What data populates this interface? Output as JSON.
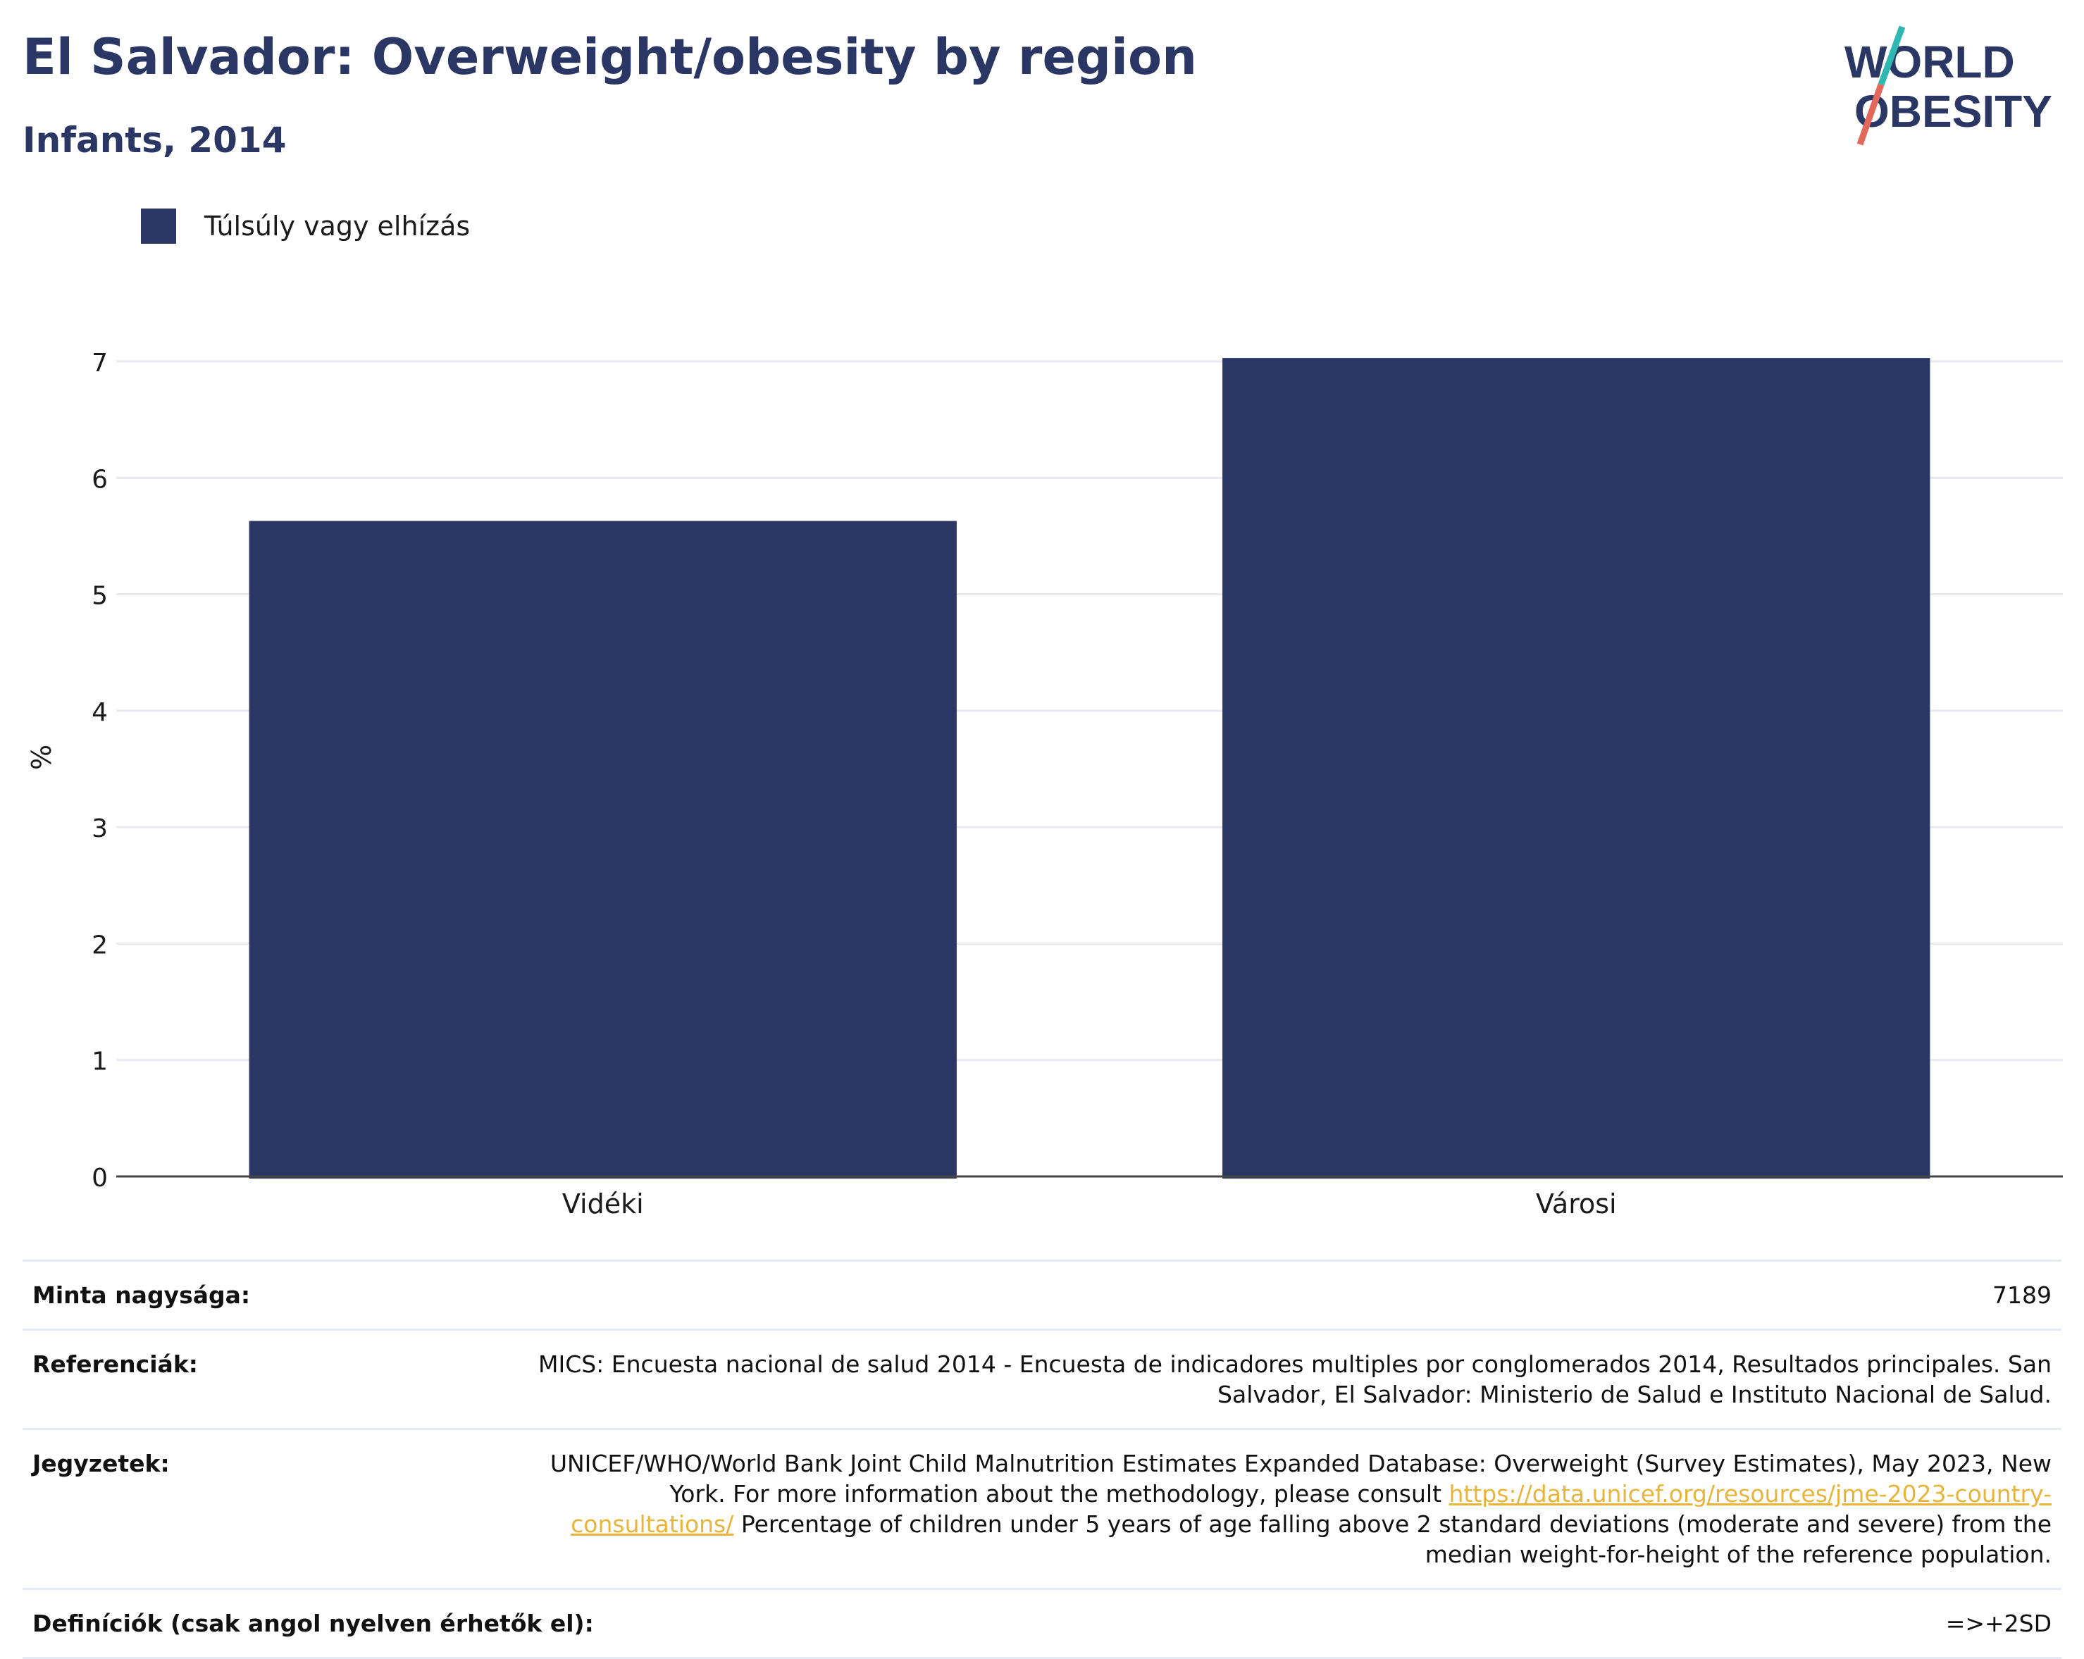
{
  "header": {
    "title": "El Salvador: Overweight/obesity by region",
    "subtitle": "Infants, 2014"
  },
  "logo": {
    "line1": "WORLD",
    "line2": "OBESITY"
  },
  "colors": {
    "bar": "#2a3764",
    "accent_teal": "#2fb7b1",
    "accent_coral": "#e2685a"
  },
  "chart_data": {
    "type": "bar",
    "categories": [
      "Vidéki",
      "Városi"
    ],
    "series": [
      {
        "name": "Túlsúly vagy elhízás",
        "values": [
          5.63,
          7.03
        ]
      }
    ],
    "ylabel": "%",
    "xlabel": "",
    "ylim": [
      0,
      7.2
    ],
    "yticks": [
      0,
      1,
      2,
      3,
      4,
      5,
      6,
      7
    ],
    "grid": true,
    "legend": "top-left"
  },
  "table": {
    "sample_label": "Minta nagysága:",
    "sample_value": "7189",
    "ref_label": "Referenciák:",
    "ref_value": "MICS: Encuesta nacional de salud 2014 - Encuesta de indicadores multiples por conglomerados 2014, Resultados principales. San Salvador, El Salvador: Ministerio de Salud e Instituto Nacional de Salud.",
    "notes_label": "Jegyzetek:",
    "notes_text_1": "UNICEF/WHO/World Bank Joint Child Malnutrition Estimates Expanded Database: Overweight (Survey Estimates), May 2023, New York. For more information about the methodology, please consult ",
    "notes_link": "https://data.unicef.org/resources/jme-2023-country-consultations/",
    "notes_text_2": " Percentage of children under 5 years of age falling above 2 standard deviations (moderate and severe) from the median weight-for-height of the reference population.",
    "def_label": "Definíciók (csak angol nyelven érhetők el):",
    "def_value": "=>+2SD"
  }
}
